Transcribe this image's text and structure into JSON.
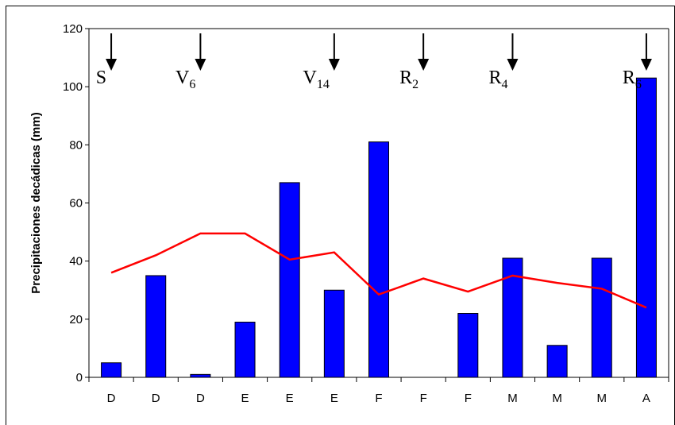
{
  "chart_data": {
    "type": "bar",
    "title": "",
    "xlabel": "",
    "ylabel": "Precipitaciones decádicas (mm)",
    "ylim": [
      0,
      120
    ],
    "yticks": [
      0,
      20,
      40,
      60,
      80,
      100,
      120
    ],
    "categories": [
      "D",
      "D",
      "D",
      "E",
      "E",
      "E",
      "F",
      "F",
      "F",
      "M",
      "M",
      "M",
      "A"
    ],
    "series": [
      {
        "type": "bar",
        "color": "#0000ff",
        "values": [
          5,
          35,
          1,
          19,
          67,
          30,
          81,
          0,
          22,
          41,
          11,
          41,
          103
        ]
      },
      {
        "type": "line",
        "color": "#ff0000",
        "values": [
          36,
          42,
          49.5,
          49.5,
          40.5,
          43,
          28.5,
          34,
          29.5,
          35,
          32.5,
          30.5,
          24
        ]
      }
    ],
    "annotations": [
      {
        "label": "S",
        "sub": "",
        "category_index": 0
      },
      {
        "label": "V",
        "sub": "6",
        "category_index": 2
      },
      {
        "label": "V",
        "sub": "14",
        "category_index": 5
      },
      {
        "label": "R",
        "sub": "2",
        "category_index": 7
      },
      {
        "label": "R",
        "sub": "4",
        "category_index": 9
      },
      {
        "label": "R",
        "sub": "6",
        "category_index": 12
      }
    ],
    "grid": false,
    "legend": "none"
  }
}
